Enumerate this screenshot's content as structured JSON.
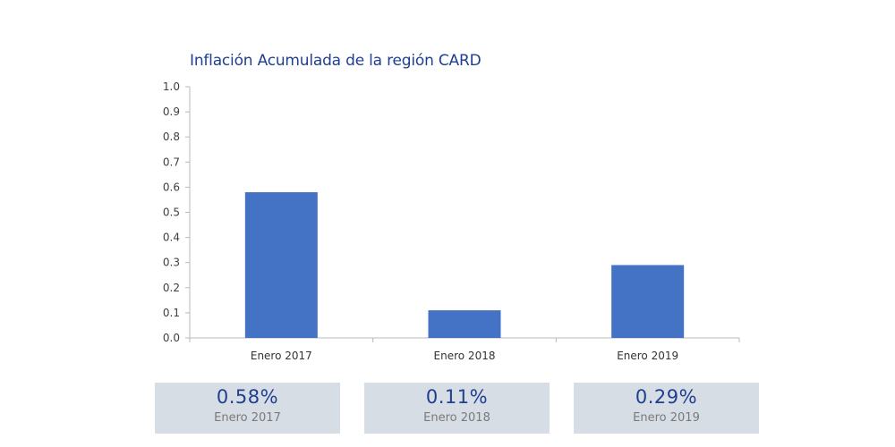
{
  "chart_data": {
    "type": "bar",
    "title": "Inflación Acumulada de la región CARD",
    "categories": [
      "Enero 2017",
      "Enero 2018",
      "Enero 2019"
    ],
    "values": [
      0.58,
      0.11,
      0.29
    ],
    "ylim": [
      0,
      1.0
    ],
    "yticks": [
      "0.0",
      "0.1",
      "0.2",
      "0.3",
      "0.4",
      "0.5",
      "0.6",
      "0.7",
      "0.8",
      "0.9",
      "1.0"
    ],
    "xlabel": "",
    "ylabel": "",
    "grid": false,
    "bar_color": "#4472c4"
  },
  "summary": [
    {
      "value": "0.58%",
      "label": "Enero 2017"
    },
    {
      "value": "0.11%",
      "label": "Enero 2018"
    },
    {
      "value": "0.29%",
      "label": "Enero 2019"
    }
  ],
  "colors": {
    "title": "#1f3f8f",
    "summary_bg": "#d6dde5",
    "summary_value": "#1f3f8f",
    "summary_label": "#7a7a7a"
  }
}
